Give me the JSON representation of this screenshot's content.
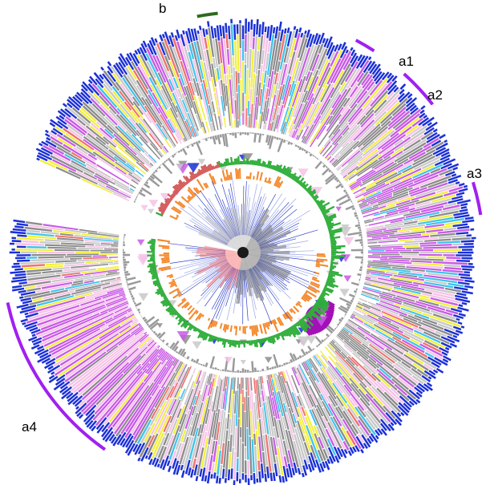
{
  "figure": {
    "type": "circular-phylogenetic-tree",
    "colors": {
      "blue": "#1a2fd6",
      "purple": "#c85ae6",
      "pink": "#f6c2e8",
      "yellow": "#f2ef3a",
      "cyan": "#3ec3ee",
      "red": "#f0706c",
      "gray": "#8c8c8c",
      "light_gray": "#c8c8c8",
      "green": "#2fae3a",
      "orange": "#f5892d",
      "dark_green": "#2d6a1f"
    },
    "clade_labels": [
      {
        "id": "a1",
        "text": "a1",
        "color": "#a020f0"
      },
      {
        "id": "a2",
        "text": "a2",
        "color": "#a020f0"
      },
      {
        "id": "a3",
        "text": "a3",
        "color": "#a020f0"
      },
      {
        "id": "a4",
        "text": "a4",
        "color": "#a020f0"
      },
      {
        "id": "b",
        "text": "b",
        "color": "#2d6a1f"
      }
    ]
  }
}
